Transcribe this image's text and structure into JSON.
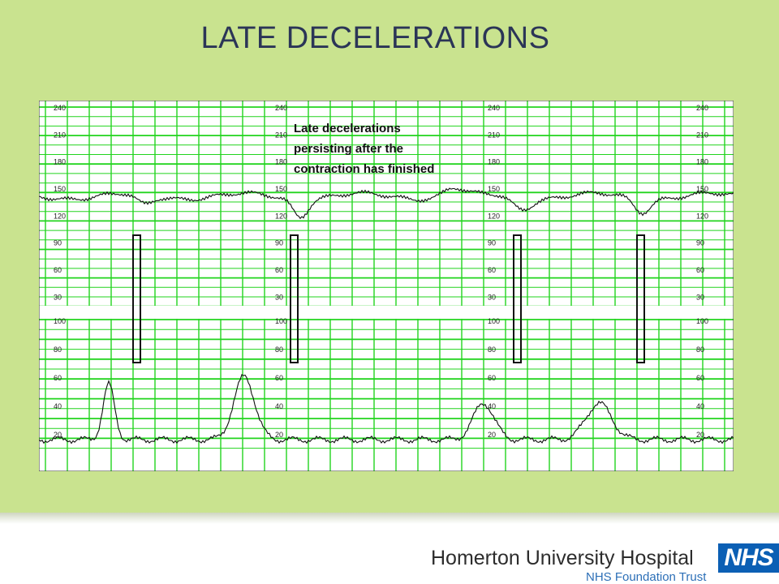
{
  "slide": {
    "title": "LATE DECELERATIONS",
    "colors": {
      "background": "#c9e38f",
      "title": "#2b3557",
      "grid": "#22d41e",
      "trace": "#111111"
    }
  },
  "ctg": {
    "annotation": [
      "Late decelerations",
      "persisting after the",
      "contraction has finished"
    ],
    "fhr_scale": [
      "240",
      "210",
      "180",
      "150",
      "120",
      "90",
      "60",
      "30"
    ],
    "toco_scale": [
      "100",
      "80",
      "60",
      "40",
      "20"
    ],
    "contraction_markers": 4
  },
  "footer": {
    "hospital_name": "Homerton University Hospital",
    "trust_name": "NHS Foundation Trust",
    "logo_text": "NHS"
  }
}
